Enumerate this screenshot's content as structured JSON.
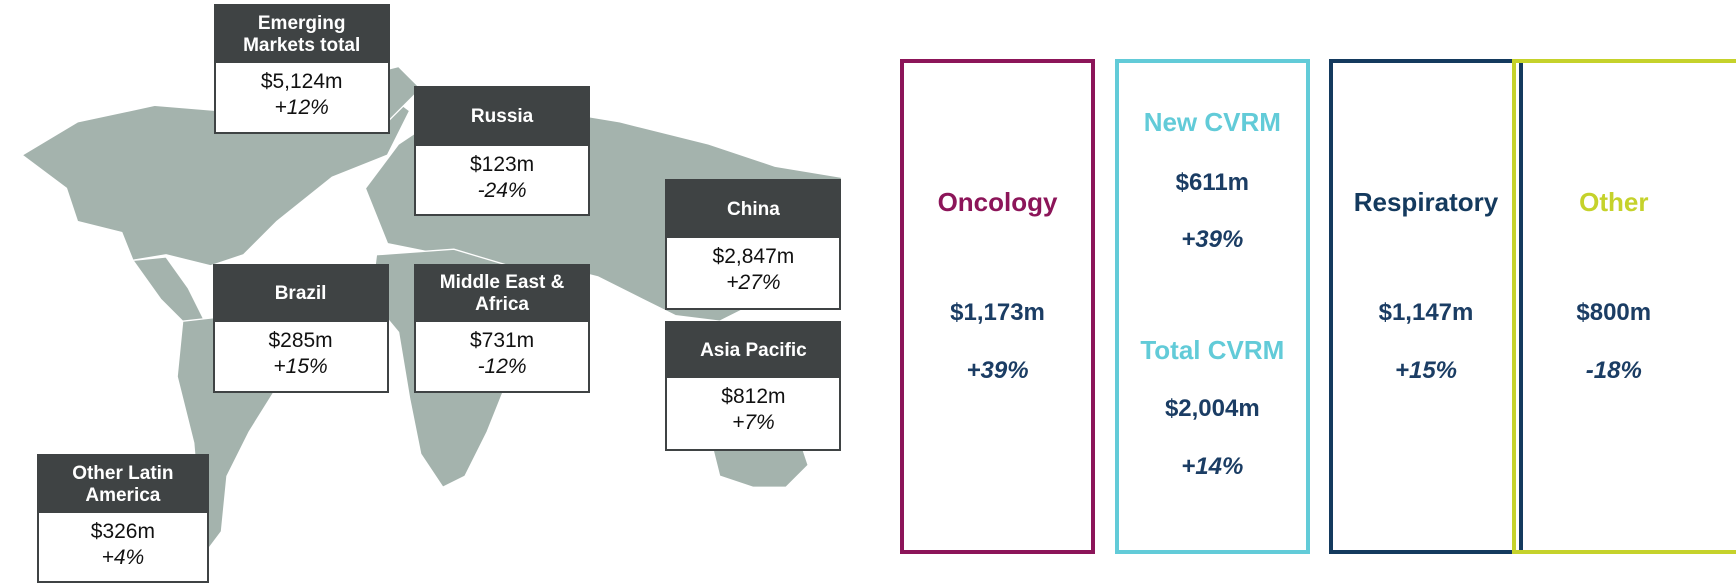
{
  "regions": [
    {
      "name": "Emerging Markets total",
      "value": "$5,124m",
      "change": "+12%"
    },
    {
      "name": "Russia",
      "value": "$123m",
      "change": "-24%"
    },
    {
      "name": "China",
      "value": "$2,847m",
      "change": "+27%"
    },
    {
      "name": "Brazil",
      "value": "$285m",
      "change": "+15%"
    },
    {
      "name": "Middle East & Africa",
      "value": "$731m",
      "change": "-12%"
    },
    {
      "name": "Asia Pacific",
      "value": "$812m",
      "change": "+7%"
    },
    {
      "name": "Other Latin America",
      "value": "$326m",
      "change": "+4%"
    }
  ],
  "therapy_areas": [
    {
      "color": "#8c1559",
      "sections": [
        {
          "title": "Oncology",
          "value": "$1,173m",
          "change": "+39%"
        }
      ]
    },
    {
      "color": "#62cbd8",
      "sections": [
        {
          "title": "New CVRM",
          "value": "$611m",
          "change": "+39%"
        },
        {
          "title": "Total CVRM",
          "value": "$2,004m",
          "change": "+14%"
        }
      ]
    },
    {
      "color": "#143a5e",
      "sections": [
        {
          "title": "Respiratory",
          "value": "$1,147m",
          "change": "+15%"
        }
      ]
    },
    {
      "color": "#c5d22b",
      "sections": [
        {
          "title": "Other",
          "value": "$800m",
          "change": "-18%"
        }
      ]
    }
  ]
}
